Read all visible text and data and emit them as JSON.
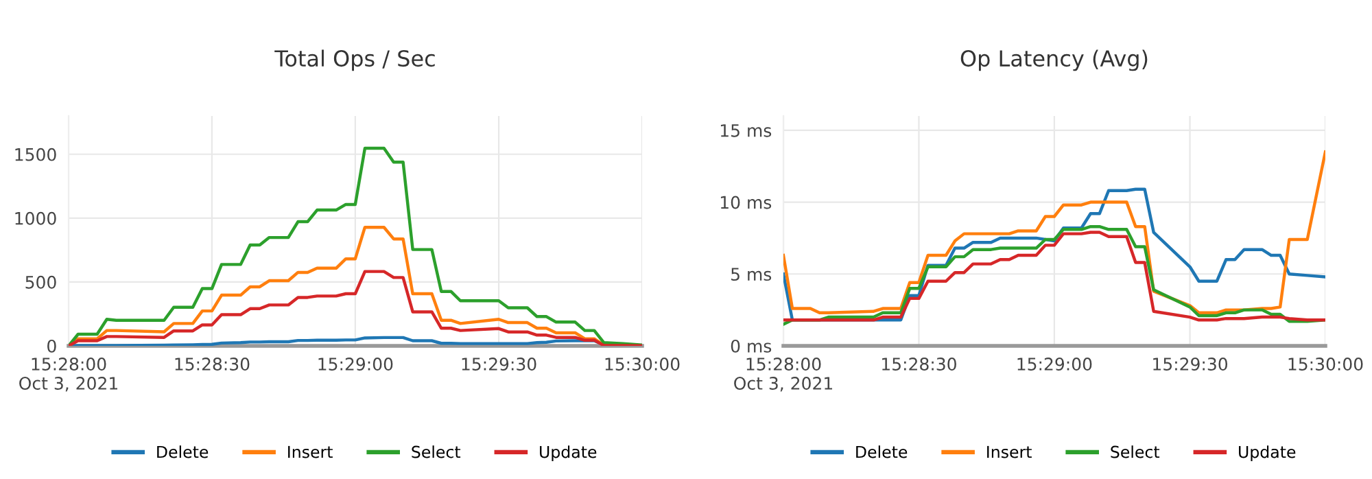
{
  "chart_data": [
    {
      "type": "line",
      "title": "Total Ops / Sec",
      "x": [
        15.46667,
        15.46722,
        15.46833,
        15.46889,
        15.46944,
        15.47222,
        15.47278,
        15.47389,
        15.47444,
        15.475,
        15.47556,
        15.47667,
        15.47722,
        15.47778,
        15.47833,
        15.47944,
        15.48,
        15.48056,
        15.48111,
        15.48222,
        15.48278,
        15.48333,
        15.48389,
        15.485,
        15.48556,
        15.48611,
        15.48667,
        15.48778,
        15.48833,
        15.48889,
        15.48944,
        15.49167,
        15.49222,
        15.49333,
        15.49389,
        15.49444,
        15.495,
        15.49611,
        15.49667,
        15.49722,
        15.49778,
        15.49889,
        15.5
      ],
      "series": [
        {
          "name": "Delete",
          "color": "#1f77b4",
          "values": [
            0,
            2,
            2,
            3,
            3,
            5,
            7,
            8,
            10,
            12,
            22,
            25,
            30,
            30,
            32,
            32,
            42,
            42,
            44,
            44,
            46,
            46,
            62,
            65,
            65,
            65,
            40,
            40,
            20,
            20,
            18,
            18,
            18,
            18,
            25,
            28,
            38,
            40,
            40,
            40,
            8,
            5,
            3
          ]
        },
        {
          "name": "Insert",
          "color": "#ff7f0e",
          "values": [
            0,
            55,
            55,
            120,
            120,
            110,
            175,
            175,
            273,
            273,
            397,
            397,
            462,
            462,
            510,
            510,
            575,
            575,
            608,
            608,
            681,
            681,
            928,
            928,
            837,
            837,
            408,
            408,
            200,
            200,
            175,
            208,
            182,
            182,
            138,
            138,
            102,
            102,
            55,
            55,
            5,
            3,
            2
          ]
        },
        {
          "name": "Select",
          "color": "#2ca02c",
          "values": [
            0,
            91,
            91,
            208,
            200,
            200,
            302,
            302,
            448,
            448,
            637,
            637,
            790,
            790,
            848,
            848,
            972,
            972,
            1063,
            1063,
            1107,
            1107,
            1547,
            1547,
            1438,
            1438,
            754,
            754,
            426,
            426,
            353,
            353,
            298,
            298,
            229,
            229,
            186,
            186,
            120,
            120,
            25,
            18,
            7
          ]
        },
        {
          "name": "Update",
          "color": "#d62728",
          "values": [
            0,
            40,
            40,
            73,
            73,
            66,
            117,
            117,
            164,
            164,
            244,
            244,
            291,
            291,
            320,
            320,
            379,
            379,
            390,
            390,
            408,
            408,
            582,
            582,
            535,
            535,
            266,
            266,
            138,
            138,
            120,
            135,
            109,
            109,
            84,
            84,
            66,
            66,
            44,
            44,
            3,
            2,
            1
          ]
        }
      ],
      "xlim": [
        15.46667,
        15.5
      ],
      "xticks": [
        {
          "value": 15.46667,
          "label": "15:28:00\nOct 3, 2021"
        },
        {
          "value": 15.475,
          "label": "15:28:30"
        },
        {
          "value": 15.48333,
          "label": "15:29:00"
        },
        {
          "value": 15.49167,
          "label": "15:29:30"
        },
        {
          "value": 15.5,
          "label": "15:30:00"
        }
      ],
      "ylim": [
        0,
        1800
      ],
      "yticks": [
        0,
        500,
        1000,
        1500
      ],
      "grid": true,
      "legend": "bottom",
      "line_style": "solid",
      "marker": "none"
    },
    {
      "type": "line",
      "title": "Op Latency (Avg)",
      "x": [
        15.46667,
        15.46722,
        15.46833,
        15.46889,
        15.46944,
        15.47222,
        15.47278,
        15.47389,
        15.47444,
        15.475,
        15.47556,
        15.47667,
        15.47722,
        15.47778,
        15.47833,
        15.47944,
        15.48,
        15.48056,
        15.48111,
        15.48222,
        15.48278,
        15.48333,
        15.48389,
        15.485,
        15.48556,
        15.48611,
        15.48667,
        15.48778,
        15.48833,
        15.48889,
        15.48944,
        15.49167,
        15.49222,
        15.49333,
        15.49389,
        15.49444,
        15.495,
        15.49611,
        15.49667,
        15.49722,
        15.49778,
        15.49889,
        15.5
      ],
      "series": [
        {
          "name": "Delete",
          "color": "#1f77b4",
          "values": [
            5.0,
            1.8,
            1.8,
            1.8,
            1.8,
            1.8,
            1.8,
            1.8,
            3.5,
            3.5,
            5.6,
            5.6,
            6.8,
            6.8,
            7.2,
            7.2,
            7.5,
            7.5,
            7.5,
            7.5,
            7.4,
            7.3,
            8.2,
            8.2,
            9.2,
            9.2,
            10.8,
            10.8,
            10.9,
            10.9,
            7.9,
            5.5,
            4.5,
            4.5,
            6.0,
            6.0,
            6.7,
            6.7,
            6.3,
            6.3,
            5.0,
            4.9,
            4.8
          ]
        },
        {
          "name": "Insert",
          "color": "#ff7f0e",
          "values": [
            6.3,
            2.6,
            2.6,
            2.3,
            2.3,
            2.4,
            2.6,
            2.6,
            4.4,
            4.4,
            6.3,
            6.3,
            7.3,
            7.8,
            7.8,
            7.8,
            7.8,
            7.8,
            8.0,
            8.0,
            9.0,
            9.0,
            9.8,
            9.8,
            10.0,
            10.0,
            10.0,
            10.0,
            8.3,
            8.3,
            3.8,
            2.8,
            2.3,
            2.3,
            2.5,
            2.5,
            2.5,
            2.6,
            2.6,
            2.7,
            7.4,
            7.4,
            13.5
          ]
        },
        {
          "name": "Select",
          "color": "#2ca02c",
          "values": [
            1.5,
            1.8,
            1.8,
            1.8,
            2.0,
            2.0,
            2.3,
            2.3,
            4.0,
            4.0,
            5.5,
            5.5,
            6.2,
            6.2,
            6.7,
            6.7,
            6.8,
            6.8,
            6.8,
            6.8,
            7.4,
            7.4,
            8.1,
            8.1,
            8.3,
            8.3,
            8.1,
            8.1,
            6.9,
            6.9,
            3.9,
            2.7,
            2.1,
            2.1,
            2.3,
            2.3,
            2.5,
            2.5,
            2.2,
            2.2,
            1.7,
            1.7,
            1.8
          ]
        },
        {
          "name": "Update",
          "color": "#d62728",
          "values": [
            1.8,
            1.8,
            1.8,
            1.8,
            1.8,
            1.8,
            2.0,
            2.0,
            3.3,
            3.3,
            4.5,
            4.5,
            5.1,
            5.1,
            5.7,
            5.7,
            6.0,
            6.0,
            6.3,
            6.3,
            7.0,
            7.0,
            7.8,
            7.8,
            7.9,
            7.9,
            7.6,
            7.6,
            5.8,
            5.8,
            2.4,
            2.0,
            1.8,
            1.8,
            1.9,
            1.9,
            1.9,
            2.0,
            2.0,
            2.0,
            1.9,
            1.8,
            1.8
          ]
        }
      ],
      "xlim": [
        15.46667,
        15.5
      ],
      "xticks": [
        {
          "value": 15.46667,
          "label": "15:28:00\nOct 3, 2021"
        },
        {
          "value": 15.475,
          "label": "15:28:30"
        },
        {
          "value": 15.48333,
          "label": "15:29:00"
        },
        {
          "value": 15.49167,
          "label": "15:29:30"
        },
        {
          "value": 15.5,
          "label": "15:30:00"
        }
      ],
      "ylim": [
        0,
        16
      ],
      "yticks": [
        {
          "value": 0,
          "label": "0 ms"
        },
        {
          "value": 5,
          "label": "5 ms"
        },
        {
          "value": 10,
          "label": "10 ms"
        },
        {
          "value": 15,
          "label": "15 ms"
        }
      ],
      "grid": true,
      "legend": "bottom",
      "line_style": "solid",
      "marker": "none"
    }
  ]
}
